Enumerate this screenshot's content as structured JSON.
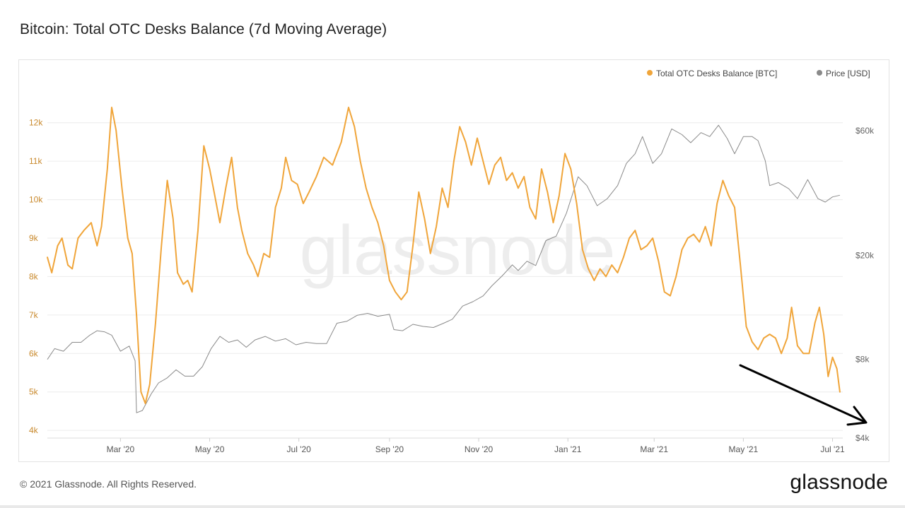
{
  "title": "Bitcoin: Total OTC Desks Balance (7d Moving Average)",
  "footer": {
    "copyright": "© 2021 Glassnode. All Rights Reserved.",
    "logo": "glassnode"
  },
  "watermark": "glassnode",
  "colors": {
    "balance": "#f0a53a",
    "price": "#8a8a8a",
    "grid": "#ececec",
    "left_tick": "#c98a2e",
    "right_tick": "#666666",
    "annotation": "#000000"
  },
  "chart_data": {
    "type": "line",
    "x_ticks": [
      "Mar '20",
      "May '20",
      "Jul '20",
      "Sep '20",
      "Nov '20",
      "Jan '21",
      "Mar '21",
      "May '21",
      "Jul '21"
    ],
    "x_range": [
      "2020-01-11",
      "2021-07-08"
    ],
    "y_left": {
      "ticks": [
        "4k",
        "5k",
        "6k",
        "7k",
        "8k",
        "9k",
        "10k",
        "11k",
        "12k"
      ],
      "range": [
        3800,
        13300
      ]
    },
    "y_right": {
      "scale": "log",
      "ticks": [
        "$4k",
        "$8k",
        "$20k",
        "$60k"
      ],
      "tick_values": [
        4000,
        8000,
        20000,
        60000
      ],
      "range": [
        4000,
        100000
      ]
    },
    "legend": [
      "Total OTC Desks Balance [BTC]",
      "Price [USD]"
    ],
    "legend_position": "top-right",
    "annotation": "downward arrow from early May '21 to Jul '21",
    "series": [
      {
        "name": "Total OTC Desks Balance [BTC]",
        "axis": "left",
        "points": [
          [
            "2020-01-11",
            8500
          ],
          [
            "2020-01-14",
            8100
          ],
          [
            "2020-01-18",
            8800
          ],
          [
            "2020-01-21",
            9000
          ],
          [
            "2020-01-25",
            8300
          ],
          [
            "2020-01-28",
            8200
          ],
          [
            "2020-02-01",
            9000
          ],
          [
            "2020-02-05",
            9200
          ],
          [
            "2020-02-10",
            9400
          ],
          [
            "2020-02-14",
            8800
          ],
          [
            "2020-02-17",
            9300
          ],
          [
            "2020-02-21",
            10800
          ],
          [
            "2020-02-24",
            12400
          ],
          [
            "2020-02-27",
            11800
          ],
          [
            "2020-03-02",
            10300
          ],
          [
            "2020-03-06",
            9000
          ],
          [
            "2020-03-09",
            8600
          ],
          [
            "2020-03-12",
            7000
          ],
          [
            "2020-03-15",
            5000
          ],
          [
            "2020-03-18",
            4700
          ],
          [
            "2020-03-21",
            5200
          ],
          [
            "2020-03-25",
            6800
          ],
          [
            "2020-03-29",
            8800
          ],
          [
            "2020-04-02",
            10500
          ],
          [
            "2020-04-06",
            9500
          ],
          [
            "2020-04-09",
            8100
          ],
          [
            "2020-04-13",
            7800
          ],
          [
            "2020-04-16",
            7900
          ],
          [
            "2020-04-19",
            7600
          ],
          [
            "2020-04-23",
            9200
          ],
          [
            "2020-04-27",
            11400
          ],
          [
            "2020-05-01",
            10800
          ],
          [
            "2020-05-04",
            10200
          ],
          [
            "2020-05-08",
            9400
          ],
          [
            "2020-05-12",
            10300
          ],
          [
            "2020-05-16",
            11100
          ],
          [
            "2020-05-20",
            9800
          ],
          [
            "2020-05-23",
            9200
          ],
          [
            "2020-05-27",
            8600
          ],
          [
            "2020-05-31",
            8300
          ],
          [
            "2020-06-03",
            8000
          ],
          [
            "2020-06-07",
            8600
          ],
          [
            "2020-06-11",
            8500
          ],
          [
            "2020-06-15",
            9800
          ],
          [
            "2020-06-19",
            10300
          ],
          [
            "2020-06-22",
            11100
          ],
          [
            "2020-06-26",
            10500
          ],
          [
            "2020-06-30",
            10400
          ],
          [
            "2020-07-04",
            9900
          ],
          [
            "2020-07-08",
            10200
          ],
          [
            "2020-07-13",
            10600
          ],
          [
            "2020-07-18",
            11100
          ],
          [
            "2020-07-24",
            10900
          ],
          [
            "2020-07-30",
            11500
          ],
          [
            "2020-08-04",
            12400
          ],
          [
            "2020-08-08",
            11900
          ],
          [
            "2020-08-12",
            11000
          ],
          [
            "2020-08-16",
            10300
          ],
          [
            "2020-08-20",
            9800
          ],
          [
            "2020-08-24",
            9400
          ],
          [
            "2020-08-28",
            8800
          ],
          [
            "2020-09-01",
            7900
          ],
          [
            "2020-09-05",
            7600
          ],
          [
            "2020-09-09",
            7400
          ],
          [
            "2020-09-13",
            7600
          ],
          [
            "2020-09-17",
            8800
          ],
          [
            "2020-09-21",
            10200
          ],
          [
            "2020-09-25",
            9500
          ],
          [
            "2020-09-29",
            8600
          ],
          [
            "2020-10-03",
            9300
          ],
          [
            "2020-10-07",
            10300
          ],
          [
            "2020-10-11",
            9800
          ],
          [
            "2020-10-15",
            11000
          ],
          [
            "2020-10-19",
            11900
          ],
          [
            "2020-10-23",
            11500
          ],
          [
            "2020-10-27",
            10900
          ],
          [
            "2020-10-31",
            11600
          ],
          [
            "2020-11-04",
            11000
          ],
          [
            "2020-11-08",
            10400
          ],
          [
            "2020-11-12",
            10900
          ],
          [
            "2020-11-16",
            11100
          ],
          [
            "2020-11-20",
            10500
          ],
          [
            "2020-11-24",
            10700
          ],
          [
            "2020-11-28",
            10300
          ],
          [
            "2020-12-02",
            10600
          ],
          [
            "2020-12-06",
            9800
          ],
          [
            "2020-12-10",
            9500
          ],
          [
            "2020-12-14",
            10800
          ],
          [
            "2020-12-18",
            10200
          ],
          [
            "2020-12-22",
            9400
          ],
          [
            "2020-12-26",
            10100
          ],
          [
            "2020-12-30",
            11200
          ],
          [
            "2021-01-03",
            10800
          ],
          [
            "2021-01-07",
            9900
          ],
          [
            "2021-01-11",
            8700
          ],
          [
            "2021-01-15",
            8200
          ],
          [
            "2021-01-19",
            7900
          ],
          [
            "2021-01-23",
            8200
          ],
          [
            "2021-01-27",
            8000
          ],
          [
            "2021-01-31",
            8300
          ],
          [
            "2021-02-04",
            8100
          ],
          [
            "2021-02-08",
            8500
          ],
          [
            "2021-02-12",
            9000
          ],
          [
            "2021-02-16",
            9200
          ],
          [
            "2021-02-20",
            8700
          ],
          [
            "2021-02-24",
            8800
          ],
          [
            "2021-02-28",
            9000
          ],
          [
            "2021-03-04",
            8400
          ],
          [
            "2021-03-08",
            7600
          ],
          [
            "2021-03-12",
            7500
          ],
          [
            "2021-03-16",
            8000
          ],
          [
            "2021-03-20",
            8700
          ],
          [
            "2021-03-24",
            9000
          ],
          [
            "2021-03-28",
            9100
          ],
          [
            "2021-04-01",
            8900
          ],
          [
            "2021-04-05",
            9300
          ],
          [
            "2021-04-09",
            8800
          ],
          [
            "2021-04-13",
            9900
          ],
          [
            "2021-04-17",
            10500
          ],
          [
            "2021-04-21",
            10100
          ],
          [
            "2021-04-25",
            9800
          ],
          [
            "2021-04-29",
            8300
          ],
          [
            "2021-05-03",
            6700
          ],
          [
            "2021-05-07",
            6300
          ],
          [
            "2021-05-11",
            6100
          ],
          [
            "2021-05-15",
            6400
          ],
          [
            "2021-05-19",
            6500
          ],
          [
            "2021-05-23",
            6400
          ],
          [
            "2021-05-27",
            6000
          ],
          [
            "2021-05-31",
            6400
          ],
          [
            "2021-06-03",
            7200
          ],
          [
            "2021-06-07",
            6200
          ],
          [
            "2021-06-11",
            6000
          ],
          [
            "2021-06-15",
            6000
          ],
          [
            "2021-06-19",
            6800
          ],
          [
            "2021-06-22",
            7200
          ],
          [
            "2021-06-25",
            6500
          ],
          [
            "2021-06-28",
            5400
          ],
          [
            "2021-07-01",
            5900
          ],
          [
            "2021-07-04",
            5600
          ],
          [
            "2021-07-06",
            5000
          ]
        ]
      },
      {
        "name": "Price [USD]",
        "axis": "right",
        "points": [
          [
            "2020-01-11",
            8000
          ],
          [
            "2020-01-16",
            8800
          ],
          [
            "2020-01-22",
            8600
          ],
          [
            "2020-01-28",
            9300
          ],
          [
            "2020-02-03",
            9300
          ],
          [
            "2020-02-09",
            9900
          ],
          [
            "2020-02-14",
            10300
          ],
          [
            "2020-02-19",
            10200
          ],
          [
            "2020-02-24",
            9900
          ],
          [
            "2020-03-01",
            8600
          ],
          [
            "2020-03-07",
            9000
          ],
          [
            "2020-03-11",
            7900
          ],
          [
            "2020-03-12",
            5000
          ],
          [
            "2020-03-16",
            5100
          ],
          [
            "2020-03-22",
            5900
          ],
          [
            "2020-03-27",
            6500
          ],
          [
            "2020-04-02",
            6800
          ],
          [
            "2020-04-08",
            7300
          ],
          [
            "2020-04-14",
            6900
          ],
          [
            "2020-04-20",
            6900
          ],
          [
            "2020-04-26",
            7500
          ],
          [
            "2020-05-02",
            8800
          ],
          [
            "2020-05-08",
            9800
          ],
          [
            "2020-05-14",
            9300
          ],
          [
            "2020-05-20",
            9500
          ],
          [
            "2020-05-26",
            8900
          ],
          [
            "2020-06-01",
            9500
          ],
          [
            "2020-06-08",
            9800
          ],
          [
            "2020-06-15",
            9400
          ],
          [
            "2020-06-22",
            9600
          ],
          [
            "2020-06-29",
            9100
          ],
          [
            "2020-07-06",
            9300
          ],
          [
            "2020-07-13",
            9200
          ],
          [
            "2020-07-20",
            9200
          ],
          [
            "2020-07-27",
            11000
          ],
          [
            "2020-08-03",
            11200
          ],
          [
            "2020-08-10",
            11800
          ],
          [
            "2020-08-17",
            12000
          ],
          [
            "2020-08-24",
            11700
          ],
          [
            "2020-09-01",
            11900
          ],
          [
            "2020-09-04",
            10400
          ],
          [
            "2020-09-10",
            10300
          ],
          [
            "2020-09-17",
            10900
          ],
          [
            "2020-09-24",
            10700
          ],
          [
            "2020-10-01",
            10600
          ],
          [
            "2020-10-08",
            11000
          ],
          [
            "2020-10-14",
            11400
          ],
          [
            "2020-10-21",
            12800
          ],
          [
            "2020-10-28",
            13300
          ],
          [
            "2020-11-04",
            14000
          ],
          [
            "2020-11-10",
            15300
          ],
          [
            "2020-11-17",
            16700
          ],
          [
            "2020-11-24",
            18400
          ],
          [
            "2020-11-28",
            17500
          ],
          [
            "2020-12-04",
            19000
          ],
          [
            "2020-12-10",
            18300
          ],
          [
            "2020-12-17",
            22800
          ],
          [
            "2020-12-24",
            23700
          ],
          [
            "2020-12-31",
            29000
          ],
          [
            "2021-01-08",
            40000
          ],
          [
            "2021-01-14",
            37000
          ],
          [
            "2021-01-21",
            31000
          ],
          [
            "2021-01-28",
            33000
          ],
          [
            "2021-02-04",
            37000
          ],
          [
            "2021-02-10",
            45000
          ],
          [
            "2021-02-16",
            49000
          ],
          [
            "2021-02-21",
            57000
          ],
          [
            "2021-02-28",
            45000
          ],
          [
            "2021-03-06",
            49000
          ],
          [
            "2021-03-13",
            61000
          ],
          [
            "2021-03-20",
            58000
          ],
          [
            "2021-03-26",
            54000
          ],
          [
            "2021-04-02",
            59000
          ],
          [
            "2021-04-08",
            57000
          ],
          [
            "2021-04-14",
            63000
          ],
          [
            "2021-04-20",
            56000
          ],
          [
            "2021-04-25",
            49000
          ],
          [
            "2021-05-01",
            57000
          ],
          [
            "2021-05-07",
            57000
          ],
          [
            "2021-05-11",
            55000
          ],
          [
            "2021-05-16",
            46000
          ],
          [
            "2021-05-19",
            37000
          ],
          [
            "2021-05-25",
            38000
          ],
          [
            "2021-06-01",
            36000
          ],
          [
            "2021-06-07",
            33000
          ],
          [
            "2021-06-14",
            39000
          ],
          [
            "2021-06-21",
            33000
          ],
          [
            "2021-06-26",
            32000
          ],
          [
            "2021-07-01",
            33500
          ],
          [
            "2021-07-06",
            34000
          ]
        ]
      }
    ]
  }
}
